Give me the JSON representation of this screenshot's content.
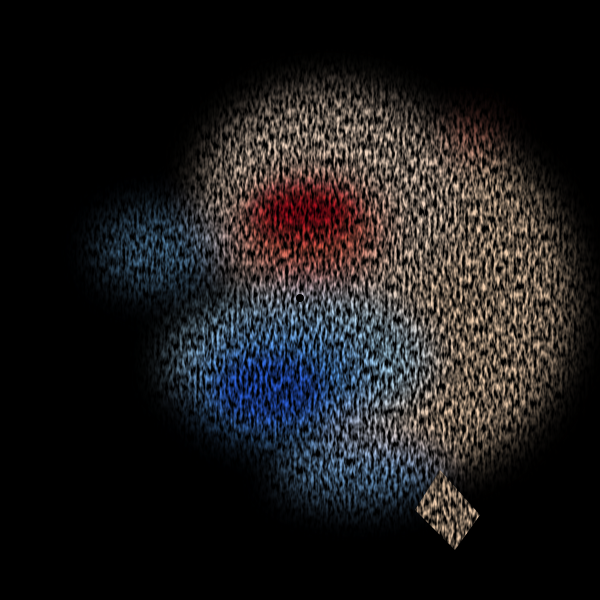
{
  "image": {
    "type": "doppler-radar-velocity",
    "background_color": "#000000",
    "colors": {
      "inbound_strong": "#1e50d8",
      "inbound_mid": "#5aa0f0",
      "inbound_light": "#b4e0fa",
      "near_zero": "#f5dcc0",
      "outbound_light": "#f8c8a0",
      "outbound_mid": "#dc6450",
      "outbound_strong": "#b40a1e"
    },
    "radar_site_marker": "black-dot"
  }
}
